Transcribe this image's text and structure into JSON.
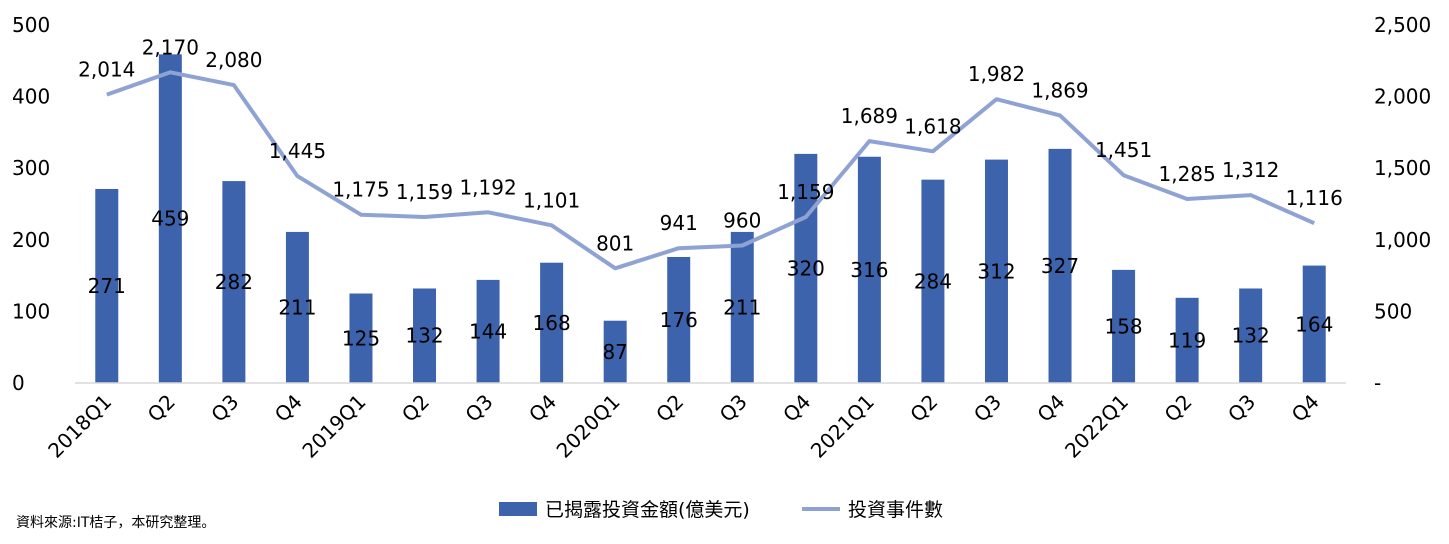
{
  "chart_data": {
    "type": "bar+line",
    "categories": [
      "2018Q1",
      "Q2",
      "Q3",
      "Q4",
      "2019Q1",
      "Q2",
      "Q3",
      "Q4",
      "2020Q1",
      "Q2",
      "Q3",
      "Q4",
      "2021Q1",
      "Q2",
      "Q3",
      "Q4",
      "2022Q1",
      "Q2",
      "Q3",
      "Q4"
    ],
    "series": [
      {
        "name": "已揭露投資金額(億美元)",
        "type": "bar",
        "axis": "left",
        "color": "#3d63ad",
        "values": [
          271,
          459,
          282,
          211,
          125,
          132,
          144,
          168,
          87,
          176,
          211,
          320,
          316,
          284,
          312,
          327,
          158,
          119,
          132,
          164
        ],
        "labels": [
          "271",
          "459",
          "282",
          "211",
          "125",
          "132",
          "144",
          "168",
          "87",
          "176",
          "211",
          "320",
          "316",
          "284",
          "312",
          "327",
          "158",
          "119",
          "132",
          "164"
        ]
      },
      {
        "name": "投資事件數",
        "type": "line",
        "axis": "right",
        "color": "#8fa2d4",
        "values": [
          2014,
          2170,
          2080,
          1445,
          1175,
          1159,
          1192,
          1101,
          801,
          941,
          960,
          1159,
          1689,
          1618,
          1982,
          1869,
          1451,
          1285,
          1312,
          1116
        ],
        "labels": [
          "2,014",
          "2,170",
          "2,080",
          "1,445",
          "1,175",
          "1,159",
          "1,192",
          "1,101",
          "801",
          "941",
          "960",
          "1,159",
          "1,689",
          "1,618",
          "1,982",
          "1,869",
          "1,451",
          "1,285",
          "1,312",
          "1,116"
        ]
      }
    ],
    "y_left": {
      "min": 0,
      "max": 500,
      "ticks": [
        0,
        100,
        200,
        300,
        400,
        500
      ],
      "tick_labels": [
        "0",
        "100",
        "200",
        "300",
        "400",
        "500"
      ]
    },
    "y_right": {
      "min": 0,
      "max": 2500,
      "ticks": [
        0,
        500,
        1000,
        1500,
        2000,
        2500
      ],
      "tick_labels": [
        "-",
        "500",
        "1,000",
        "1,500",
        "2,000",
        "2,500"
      ]
    },
    "grid": false,
    "legend": "bottom"
  },
  "source_note": "資料來源:IT桔子，本研究整理。"
}
